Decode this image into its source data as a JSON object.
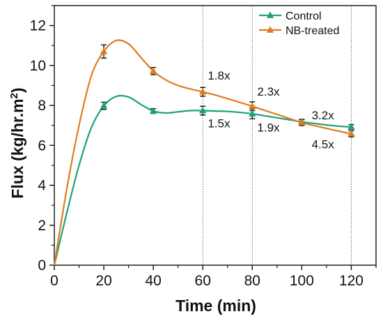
{
  "chart_data": {
    "type": "line",
    "xlabel": "Time (min)",
    "ylabel": "Flux (kg/hr.m",
    "ylabel_superscript": "2",
    "ylabel_suffix": ")",
    "xlim": [
      0,
      130
    ],
    "ylim": [
      0,
      13
    ],
    "x_ticks": [
      0,
      20,
      40,
      60,
      80,
      100,
      120
    ],
    "y_ticks": [
      0,
      2,
      4,
      6,
      8,
      10,
      12
    ],
    "x_tick_labels": [
      "0",
      "20",
      "40",
      "60",
      "80",
      "100",
      "120"
    ],
    "y_tick_labels": [
      "0",
      "2",
      "4",
      "6",
      "8",
      "10",
      "12"
    ],
    "grid": false,
    "reference_lines_x": [
      60,
      80,
      120
    ],
    "legend_position": "top-right",
    "series": [
      {
        "name": "Control",
        "color": "#1aa27b",
        "x": [
          0,
          20,
          40,
          60,
          80,
          100,
          120
        ],
        "y": [
          0,
          7.98,
          7.72,
          7.74,
          7.58,
          7.18,
          6.92
        ],
        "error": [
          0,
          0.18,
          0.12,
          0.22,
          0.25,
          0.12,
          0.12
        ],
        "curve_x": [
          0,
          5,
          10,
          15,
          20,
          25,
          30,
          35,
          40,
          45,
          50,
          55,
          60,
          65,
          70,
          75,
          80,
          85,
          90,
          95,
          100,
          105,
          110,
          115,
          120
        ],
        "curve_y": [
          0,
          2.6,
          5.0,
          6.9,
          7.98,
          8.45,
          8.42,
          8.05,
          7.72,
          7.62,
          7.68,
          7.74,
          7.74,
          7.72,
          7.7,
          7.65,
          7.58,
          7.48,
          7.38,
          7.28,
          7.18,
          7.1,
          7.02,
          6.96,
          6.92
        ]
      },
      {
        "name": "NB-treated",
        "color": "#e07b1f",
        "x": [
          0,
          20,
          40,
          60,
          80,
          100,
          120
        ],
        "y": [
          0,
          10.7,
          9.72,
          8.68,
          7.96,
          7.14,
          6.58
        ],
        "error": [
          0,
          0.33,
          0.18,
          0.22,
          0.22,
          0.15,
          0.15
        ],
        "curve_x": [
          0,
          5,
          10,
          15,
          20,
          25,
          30,
          35,
          40,
          45,
          50,
          55,
          60,
          65,
          70,
          75,
          80,
          85,
          90,
          95,
          100,
          105,
          110,
          115,
          120
        ],
        "curve_y": [
          0,
          3.8,
          7.0,
          9.5,
          10.7,
          11.25,
          11.08,
          10.4,
          9.72,
          9.28,
          9.0,
          8.82,
          8.68,
          8.52,
          8.34,
          8.15,
          7.96,
          7.75,
          7.55,
          7.34,
          7.14,
          6.99,
          6.85,
          6.71,
          6.58
        ]
      }
    ],
    "annotations": [
      {
        "text": "1.8x",
        "x": 62,
        "y": 9.3
      },
      {
        "text": "1.5x",
        "x": 62,
        "y": 6.9
      },
      {
        "text": "2.3x",
        "x": 82,
        "y": 8.5
      },
      {
        "text": "1.9x",
        "x": 82,
        "y": 6.7
      },
      {
        "text": "3.2x",
        "x": 104,
        "y": 7.3
      },
      {
        "text": "4.5x",
        "x": 104,
        "y": 5.85
      }
    ]
  }
}
